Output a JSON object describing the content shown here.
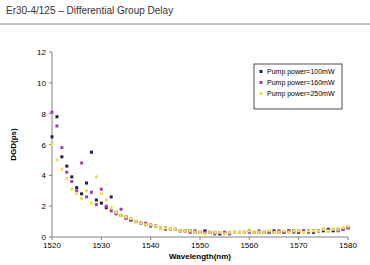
{
  "chart_data": {
    "type": "scatter",
    "title": "Er30-4/125 – Differential Group Delay",
    "x_label": "Wavelength(nm)",
    "y_label": "DGD(ps)",
    "xlim": [
      1520,
      1580
    ],
    "xticks": [
      1520,
      1530,
      1540,
      1550,
      1560,
      1570,
      1580
    ],
    "ylim": [
      0,
      12
    ],
    "yticks": [
      0,
      2,
      4,
      6,
      8,
      10,
      12
    ],
    "grid": false,
    "legend": "upper right",
    "marker": "square",
    "x": [
      1520,
      1521,
      1522,
      1523,
      1524,
      1525,
      1526,
      1527,
      1528,
      1529,
      1530,
      1531,
      1532,
      1533,
      1534,
      1535,
      1536,
      1537,
      1538,
      1539,
      1540,
      1541,
      1542,
      1543,
      1544,
      1545,
      1546,
      1547,
      1548,
      1549,
      1550,
      1551,
      1552,
      1553,
      1554,
      1555,
      1556,
      1557,
      1558,
      1559,
      1560,
      1561,
      1562,
      1563,
      1564,
      1565,
      1566,
      1567,
      1568,
      1569,
      1570,
      1571,
      1572,
      1573,
      1574,
      1575,
      1576,
      1577,
      1578,
      1579,
      1580
    ],
    "series": [
      {
        "name": "Pump power=100mW",
        "color": "#1c1c50",
        "values": [
          6.5,
          7.8,
          5.2,
          4.6,
          3.9,
          3.2,
          2.8,
          3.5,
          5.5,
          2.4,
          2.2,
          1.9,
          2.6,
          1.6,
          1.4,
          1.3,
          1.1,
          1.0,
          0.9,
          0.8,
          0.8,
          0.7,
          0.6,
          0.6,
          0.5,
          0.5,
          0.4,
          0.4,
          0.4,
          0.3,
          0.3,
          0.4,
          0.3,
          0.3,
          0.2,
          0.3,
          0.3,
          0.3,
          0.3,
          0.3,
          0.4,
          0.3,
          0.3,
          0.3,
          0.3,
          0.4,
          0.3,
          0.3,
          0.4,
          0.4,
          0.3,
          0.4,
          0.4,
          0.3,
          0.4,
          0.4,
          0.5,
          0.4,
          0.5,
          0.5,
          0.6
        ]
      },
      {
        "name": "Pump power=160mW",
        "color": "#a43cb4",
        "values": [
          8.1,
          7.2,
          5.8,
          4.2,
          3.6,
          3.0,
          4.8,
          2.6,
          2.9,
          2.1,
          3.1,
          2.0,
          1.7,
          1.5,
          1.8,
          1.2,
          1.1,
          1.0,
          0.9,
          0.9,
          0.7,
          0.7,
          0.6,
          0.5,
          0.5,
          0.5,
          0.4,
          0.4,
          0.3,
          0.4,
          0.3,
          0.3,
          0.3,
          0.2,
          0.3,
          0.3,
          0.2,
          0.3,
          0.3,
          0.3,
          0.3,
          0.3,
          0.4,
          0.3,
          0.3,
          0.3,
          0.4,
          0.3,
          0.4,
          0.3,
          0.4,
          0.4,
          0.3,
          0.4,
          0.4,
          0.5,
          0.4,
          0.5,
          0.4,
          0.5,
          0.6
        ]
      },
      {
        "name": "Pump power=250mW",
        "color": "#f2e03c",
        "values": [
          6.0,
          5.0,
          4.4,
          3.8,
          3.1,
          2.8,
          2.5,
          3.0,
          2.2,
          3.9,
          2.8,
          2.4,
          1.9,
          1.6,
          1.4,
          1.3,
          1.2,
          1.0,
          0.9,
          0.8,
          0.8,
          0.7,
          0.6,
          0.6,
          0.5,
          0.5,
          0.4,
          0.4,
          0.4,
          0.3,
          0.3,
          0.2,
          0.3,
          0.3,
          0.3,
          0.2,
          0.3,
          0.3,
          0.3,
          0.3,
          0.4,
          0.3,
          0.3,
          0.3,
          0.4,
          0.3,
          0.3,
          0.4,
          0.3,
          0.4,
          0.4,
          0.3,
          0.4,
          0.4,
          0.4,
          0.5,
          0.4,
          0.5,
          0.5,
          0.6,
          0.7
        ]
      }
    ]
  }
}
